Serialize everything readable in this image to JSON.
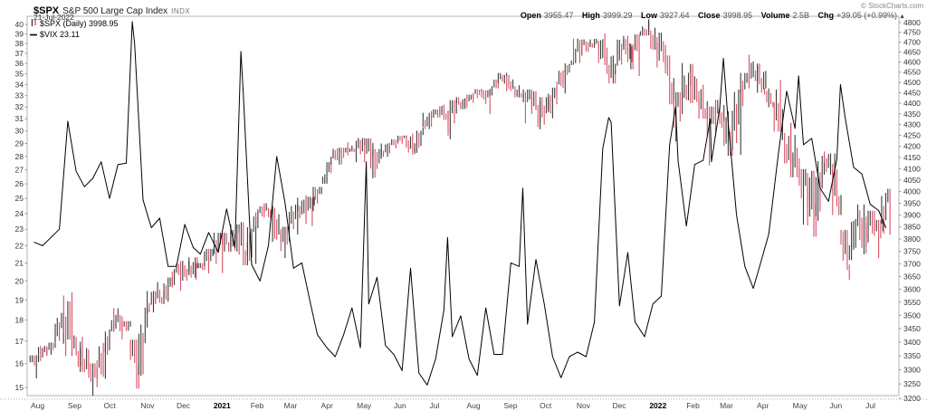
{
  "header": {
    "symbol": "$SPX",
    "title": "S&P 500 Large Cap Index",
    "exchange": "INDX",
    "date": "21-Jul-2022",
    "copyright": "© StockCharts.com",
    "quote": {
      "open_label": "Open",
      "open_value": "3955.47",
      "high_label": "High",
      "high_value": "3999.29",
      "low_label": "Low",
      "low_value": "3927.64",
      "close_label": "Close",
      "close_value": "3998.95",
      "volume_label": "Volume",
      "volume_value": "2.5B",
      "chg_label": "Chg",
      "chg_value": "+39.05 (+0.99%)",
      "chg_arrow": "▲"
    }
  },
  "legend": {
    "spx_label": "$SPX (Daily) 3998.95",
    "vix_label": "$VIX 23.11"
  },
  "chart_data": {
    "type": "line+ohlc",
    "title": "$SPX S&P 500 Large Cap Index with $VIX overlay",
    "grid": false,
    "legend_position": "top-left",
    "colors": {
      "spx_up": "#3a3a3a",
      "spx_down": "#d94f63",
      "vix_line": "#000000",
      "axis_text": "#333333",
      "month_text": "#444444",
      "year_text": "#000000",
      "border": "#b3b3b3",
      "ruler": "#aaaaaa"
    },
    "left_axis": {
      "title": "$VIX",
      "scale": "log",
      "min": 15,
      "max": 40,
      "ticks": [
        40,
        39,
        38,
        37,
        36,
        35,
        34,
        33,
        32,
        31,
        30,
        29,
        28,
        27,
        26,
        25,
        24,
        23,
        22,
        21,
        20,
        19,
        18,
        17,
        16,
        15
      ]
    },
    "right_axis": {
      "title": "$SPX",
      "scale": "log",
      "min": 3200,
      "max": 4800,
      "ticks": [
        4800,
        4750,
        4700,
        4650,
        4600,
        4550,
        4500,
        4450,
        4400,
        4350,
        4300,
        4250,
        4200,
        4150,
        4100,
        4050,
        4000,
        3950,
        3900,
        3850,
        3800,
        3750,
        3700,
        3650,
        3600,
        3550,
        3500,
        3450,
        3400,
        3350,
        3300,
        3250,
        3200
      ]
    },
    "x_axis": {
      "start": "2020-08-01",
      "end": "2022-08-01",
      "months": [
        "Aug",
        "Sep",
        "Oct",
        "Nov",
        "Dec",
        "2021",
        "Feb",
        "Mar",
        "Apr",
        "May",
        "Jun",
        "Jul",
        "Aug",
        "Sep",
        "Oct",
        "Nov",
        "Dec",
        "2022",
        "Feb",
        "Mar",
        "Apr",
        "May",
        "Jun",
        "Jul"
      ],
      "bold_labels": [
        "2021",
        "2022"
      ]
    },
    "series": [
      {
        "name": "$SPX",
        "type": "ohlc_bars",
        "axis": "right",
        "period": "daily"
      },
      {
        "name": "$VIX",
        "type": "line",
        "axis": "left",
        "period": "daily"
      }
    ],
    "columns": [
      "date",
      "spx_high",
      "spx_low",
      "spx_close",
      "vix_close"
    ],
    "rows": [
      [
        "2020-08-07",
        3352,
        3270,
        3351,
        22.2
      ],
      [
        "2020-08-14",
        3387,
        3329,
        3373,
        22.0
      ],
      [
        "2020-08-21",
        3399,
        3354,
        3397,
        22.5
      ],
      [
        "2020-08-28",
        3509,
        3394,
        3508,
        23.0
      ],
      [
        "2020-09-04",
        3588,
        3349,
        3427,
        30.8
      ],
      [
        "2020-09-11",
        3425,
        3310,
        3341,
        26.9
      ],
      [
        "2020-09-18",
        3420,
        3292,
        3319,
        25.8
      ],
      [
        "2020-09-25",
        3323,
        3209,
        3298,
        26.4
      ],
      [
        "2020-10-02",
        3397,
        3268,
        3348,
        27.6
      ],
      [
        "2020-10-09",
        3482,
        3354,
        3477,
        25.0
      ],
      [
        "2020-10-16",
        3527,
        3440,
        3484,
        27.4
      ],
      [
        "2020-10-23",
        3478,
        3410,
        3465,
        27.5
      ],
      [
        "2020-10-28",
        null,
        null,
        null,
        40.3
      ],
      [
        "2020-10-30",
        3409,
        3234,
        3270,
        38.0
      ],
      [
        "2020-11-06",
        3529,
        3279,
        3509,
        24.9
      ],
      [
        "2020-11-13",
        3593,
        3511,
        3585,
        23.1
      ],
      [
        "2020-11-20",
        3628,
        3543,
        3558,
        23.7
      ],
      [
        "2020-11-27",
        3646,
        3552,
        3638,
        20.8
      ],
      [
        "2020-12-04",
        3700,
        3594,
        3699,
        20.8
      ],
      [
        "2020-12-11",
        3712,
        3633,
        3663,
        23.3
      ],
      [
        "2020-12-18",
        3726,
        3645,
        3709,
        21.9
      ],
      [
        "2020-12-24",
        3703,
        3636,
        3703,
        21.5
      ],
      [
        "2020-12-31",
        3760,
        3662,
        3756,
        22.8
      ],
      [
        "2021-01-08",
        3826,
        3663,
        3825,
        21.6
      ],
      [
        "2021-01-15",
        3826,
        3749,
        3768,
        24.3
      ],
      [
        "2021-01-22",
        3861,
        3749,
        3841,
        21.9
      ],
      [
        "2021-01-27",
        null,
        null,
        null,
        37.2
      ],
      [
        "2021-01-29",
        3870,
        3694,
        3714,
        33.1
      ],
      [
        "2021-02-05",
        3894,
        3700,
        3887,
        20.9
      ],
      [
        "2021-02-12",
        3937,
        3845,
        3935,
        20.0
      ],
      [
        "2021-02-19",
        3950,
        3885,
        3907,
        22.0
      ],
      [
        "2021-02-26",
        3930,
        3789,
        3811,
        28.0
      ],
      [
        "2021-03-05",
        3851,
        3723,
        3842,
        24.7
      ],
      [
        "2021-03-12",
        3944,
        3819,
        3943,
        20.7
      ],
      [
        "2021-03-19",
        3984,
        3886,
        3913,
        21.0
      ],
      [
        "2021-03-26",
        3978,
        3854,
        3975,
        18.9
      ],
      [
        "2021-04-01",
        4020,
        3917,
        4020,
        17.3
      ],
      [
        "2021-04-09",
        4129,
        4034,
        4129,
        16.7
      ],
      [
        "2021-04-16",
        4191,
        4118,
        4185,
        16.3
      ],
      [
        "2021-04-23",
        4194,
        4119,
        4180,
        17.3
      ],
      [
        "2021-04-30",
        4219,
        4174,
        4181,
        18.6
      ],
      [
        "2021-05-07",
        4238,
        4129,
        4233,
        16.7
      ],
      [
        "2021-05-12",
        null,
        null,
        null,
        27.6
      ],
      [
        "2021-05-14",
        4236,
        4057,
        4174,
        18.8
      ],
      [
        "2021-05-21",
        4188,
        4061,
        4156,
        20.2
      ],
      [
        "2021-05-28",
        4213,
        4153,
        4204,
        16.8
      ],
      [
        "2021-06-04",
        4233,
        4168,
        4230,
        16.4
      ],
      [
        "2021-06-11",
        4249,
        4212,
        4247,
        15.7
      ],
      [
        "2021-06-18",
        4258,
        4164,
        4166,
        20.7
      ],
      [
        "2021-06-25",
        4286,
        4171,
        4281,
        15.6
      ],
      [
        "2021-07-02",
        4355,
        4279,
        4352,
        15.1
      ],
      [
        "2021-07-09",
        4371,
        4289,
        4370,
        16.2
      ],
      [
        "2021-07-16",
        4394,
        4322,
        4327,
        18.5
      ],
      [
        "2021-07-19",
        null,
        null,
        null,
        22.5
      ],
      [
        "2021-07-23",
        4415,
        4233,
        4412,
        17.2
      ],
      [
        "2021-07-30",
        4430,
        4372,
        4395,
        18.2
      ],
      [
        "2021-08-06",
        4441,
        4373,
        4437,
        16.2
      ],
      [
        "2021-08-13",
        4468,
        4424,
        4468,
        15.5
      ],
      [
        "2021-08-20",
        4462,
        4348,
        4442,
        18.6
      ],
      [
        "2021-08-27",
        4514,
        4437,
        4510,
        16.4
      ],
      [
        "2021-09-03",
        4546,
        4494,
        4535,
        16.4
      ],
      [
        "2021-09-10",
        4536,
        4458,
        4459,
        21.0
      ],
      [
        "2021-09-17",
        4486,
        4428,
        4433,
        20.8
      ],
      [
        "2021-09-20",
        null,
        null,
        null,
        25.7
      ],
      [
        "2021-09-24",
        4466,
        4306,
        4455,
        17.8
      ],
      [
        "2021-10-01",
        4457,
        4288,
        4357,
        21.2
      ],
      [
        "2021-10-08",
        4429,
        4278,
        4391,
        18.8
      ],
      [
        "2021-10-15",
        4475,
        4329,
        4471,
        16.3
      ],
      [
        "2021-10-22",
        4559,
        4447,
        4545,
        15.4
      ],
      [
        "2021-10-29",
        4608,
        4537,
        4605,
        16.3
      ],
      [
        "2021-11-05",
        4718,
        4595,
        4698,
        16.5
      ],
      [
        "2021-11-12",
        4714,
        4630,
        4683,
        16.3
      ],
      [
        "2021-11-19",
        4717,
        4672,
        4698,
        17.9
      ],
      [
        "2021-11-26",
        4744,
        4585,
        4595,
        28.6
      ],
      [
        "2021-12-01",
        null,
        null,
        null,
        31.1
      ],
      [
        "2021-12-03",
        4672,
        4495,
        4538,
        30.7
      ],
      [
        "2021-12-10",
        4713,
        4540,
        4712,
        18.7
      ],
      [
        "2021-12-17",
        4732,
        4600,
        4621,
        21.6
      ],
      [
        "2021-12-23",
        4740,
        4531,
        4726,
        17.9
      ],
      [
        "2021-12-31",
        4808,
        4733,
        4766,
        17.2
      ],
      [
        "2022-01-07",
        4818,
        4662,
        4677,
        18.8
      ],
      [
        "2022-01-14",
        4748,
        4573,
        4663,
        19.2
      ],
      [
        "2022-01-21",
        4633,
        4395,
        4398,
        28.9
      ],
      [
        "2022-01-26",
        null,
        null,
        null,
        32.0
      ],
      [
        "2022-01-28",
        4453,
        4222,
        4432,
        27.7
      ],
      [
        "2022-02-04",
        4595,
        4414,
        4501,
        23.2
      ],
      [
        "2022-02-11",
        4590,
        4401,
        4419,
        27.4
      ],
      [
        "2022-02-18",
        4489,
        4327,
        4349,
        27.7
      ],
      [
        "2022-02-24",
        null,
        null,
        null,
        31.0
      ],
      [
        "2022-02-25",
        4385,
        4114,
        4385,
        27.6
      ],
      [
        "2022-03-04",
        4416,
        4285,
        4329,
        32.0
      ],
      [
        "2022-03-07",
        null,
        null,
        null,
        36.5
      ],
      [
        "2022-03-11",
        4362,
        4158,
        4204,
        30.7
      ],
      [
        "2022-03-18",
        4465,
        4162,
        4463,
        23.9
      ],
      [
        "2022-03-25",
        4546,
        4386,
        4543,
        20.8
      ],
      [
        "2022-04-01",
        4637,
        4507,
        4546,
        19.6
      ],
      [
        "2022-04-08",
        4593,
        4450,
        4488,
        21.2
      ],
      [
        "2022-04-14",
        4471,
        4381,
        4393,
        22.7
      ],
      [
        "2022-04-22",
        4512,
        4267,
        4272,
        28.2
      ],
      [
        "2022-04-29",
        4308,
        4124,
        4132,
        33.4
      ],
      [
        "2022-05-06",
        4307,
        4062,
        4123,
        30.2
      ],
      [
        "2022-05-09",
        null,
        null,
        null,
        34.8
      ],
      [
        "2022-05-13",
        4098,
        3859,
        4024,
        28.9
      ],
      [
        "2022-05-20",
        4090,
        3810,
        3901,
        29.4
      ],
      [
        "2022-05-27",
        4158,
        3875,
        4158,
        25.7
      ],
      [
        "2022-06-03",
        4177,
        4074,
        4109,
        24.8
      ],
      [
        "2022-06-10",
        4168,
        3900,
        3901,
        27.8
      ],
      [
        "2022-06-13",
        null,
        null,
        null,
        34.0
      ],
      [
        "2022-06-17",
        3838,
        3637,
        3675,
        31.1
      ],
      [
        "2022-06-24",
        3913,
        3715,
        3912,
        27.2
      ],
      [
        "2022-07-01",
        3945,
        3738,
        3825,
        26.7
      ],
      [
        "2022-07-08",
        3918,
        3742,
        3899,
        24.6
      ],
      [
        "2022-07-15",
        3880,
        3722,
        3863,
        24.2
      ],
      [
        "2022-07-21",
        4012,
        3818,
        3999,
        23.1
      ]
    ]
  }
}
